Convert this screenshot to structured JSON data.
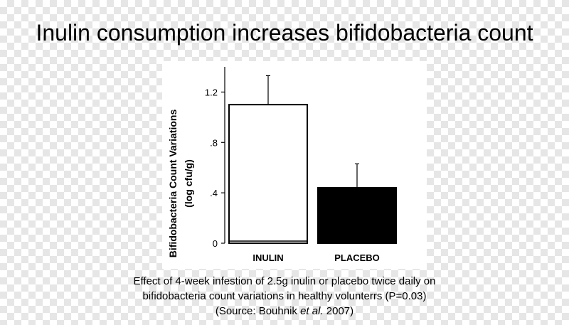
{
  "slide": {
    "title": "Inulin consumption increases bifidobacteria count"
  },
  "caption": {
    "line1": "Effect of 4-week infestion of 2.5g inulin or placebo twice daily on",
    "line2": "bifidobacteria count variations in healthy volunterrs (P=0.03)",
    "line3_prefix": "(Source: Bouhnik ",
    "line3_italic": "et al.",
    "line3_suffix": " 2007)"
  },
  "chart_data": {
    "type": "bar",
    "categories": [
      "INULIN",
      "PLACEBO"
    ],
    "values": [
      1.1,
      0.44
    ],
    "error_upper": [
      1.33,
      0.63
    ],
    "bar_colors": [
      "#ffffff",
      "#000000"
    ],
    "ylabel_line1": "Bifidobacteria Count Variations",
    "ylabel_line2": "(log cfu/g)",
    "ylim": [
      0,
      1.4
    ],
    "yticks": [
      0,
      0.4,
      0.8,
      1.2
    ],
    "ytick_labels": [
      "0",
      ".4",
      ".8",
      "1.2"
    ],
    "grid": false
  }
}
